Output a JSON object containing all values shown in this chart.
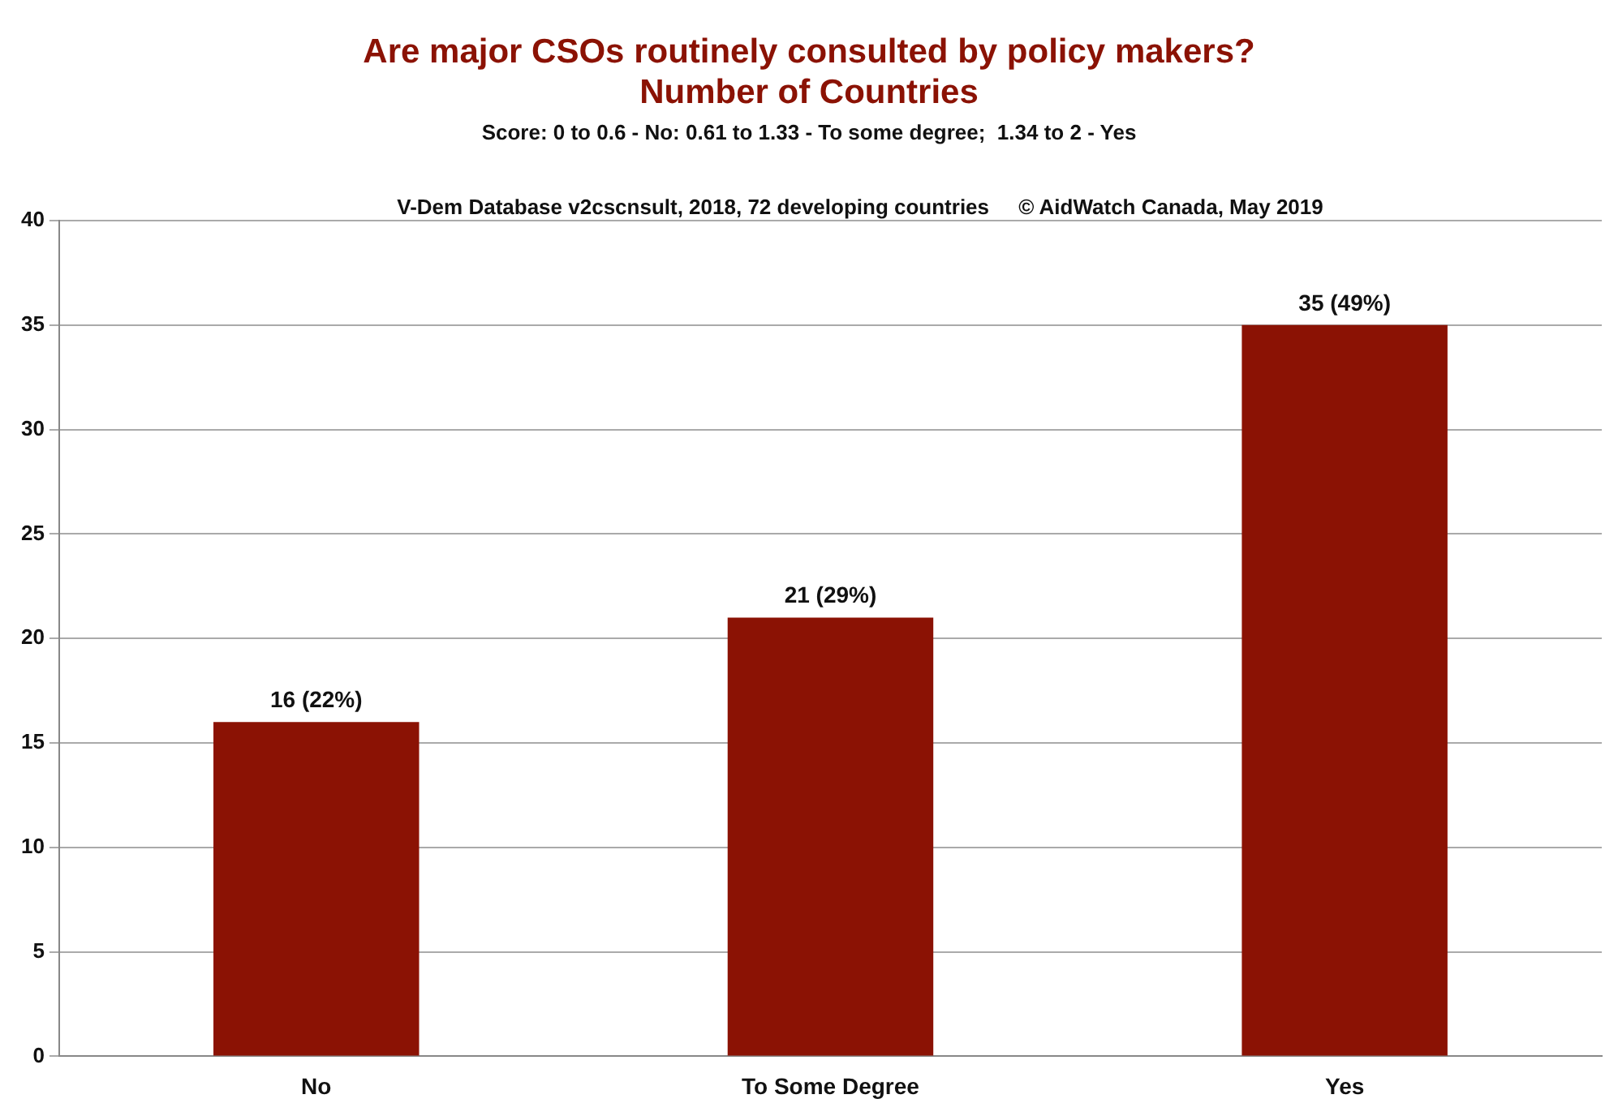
{
  "chart_data": {
    "type": "bar",
    "title": "Are major CSOs routinely consulted by policy makers?\nNumber of Countries",
    "subtitle": "Score: 0 to 0.6 - No: 0.61 to 1.33 - To some degree;  1.34 to 2 - Yes",
    "annotations": [
      "V-Dem Database v2cscnsult, 2018, 72 developing countries     © AidWatch Canada, May 2019"
    ],
    "categories": [
      "No",
      "To Some Degree",
      "Yes"
    ],
    "values": [
      16,
      21,
      35
    ],
    "value_labels": [
      "16 (22%)",
      "21 (29%)",
      "35 (49%)"
    ],
    "color": "#8b1204",
    "ylim": [
      0,
      40
    ],
    "yticks": [
      0,
      5,
      10,
      15,
      20,
      25,
      30,
      35,
      40
    ],
    "grid": "y",
    "legend": false
  }
}
